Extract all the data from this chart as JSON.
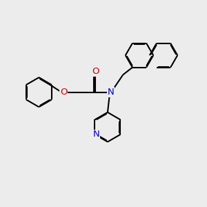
{
  "bg_color": "#ececec",
  "bond_color": "#000000",
  "N_color": "#0000cc",
  "O_color": "#cc0000",
  "lw": 1.5,
  "dbo": 0.035,
  "figsize": [
    3.0,
    3.0
  ],
  "dpi": 100,
  "xlim": [
    0,
    10
  ],
  "ylim": [
    0,
    10
  ]
}
